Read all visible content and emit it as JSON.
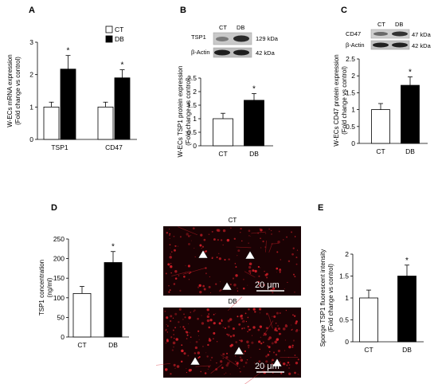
{
  "panels": {
    "A": "A",
    "B": "B",
    "C": "C",
    "D": "D",
    "E": "E"
  },
  "blots": {
    "B": {
      "lanes": [
        "CT",
        "DB"
      ],
      "rows": [
        {
          "protein": "TSP1",
          "size": "129 kDa"
        },
        {
          "protein": "β-Actin",
          "size": "42 kDa"
        }
      ]
    },
    "C": {
      "lanes": [
        "CT",
        "DB"
      ],
      "rows": [
        {
          "protein": "CD47",
          "size": "47 kDa"
        },
        {
          "protein": "β-Actin",
          "size": "42 kDa"
        }
      ]
    }
  },
  "micrographs": {
    "top": {
      "label": "CT",
      "scalebar": "20 μm"
    },
    "bottom": {
      "label": "DB",
      "scalebar": "20 μm"
    }
  },
  "colors": {
    "ct": "#ffffff",
    "db": "#000000",
    "micro_bg": "#1a0204",
    "micro_signal": "#d8202a"
  },
  "chart_data": [
    {
      "panel": "A",
      "type": "bar",
      "categories": [
        "TSP1",
        "CD47"
      ],
      "series": [
        {
          "name": "CT",
          "color": "#ffffff",
          "values": [
            1.0,
            1.0
          ],
          "errors": [
            0.15,
            0.15
          ]
        },
        {
          "name": "DB",
          "color": "#000000",
          "values": [
            2.17,
            1.9
          ],
          "errors": [
            0.42,
            0.25
          ]
        }
      ],
      "significance": [
        {
          "category": "TSP1",
          "series": "DB",
          "mark": "*"
        },
        {
          "category": "CD47",
          "series": "DB",
          "mark": "*"
        }
      ],
      "ylabel": "W-ECs mRNA expression\n(Fold change vs control)",
      "ylim": [
        0,
        3
      ],
      "yticks": [
        "0",
        "1",
        "2",
        "3"
      ],
      "legend": "top-right"
    },
    {
      "panel": "B",
      "type": "bar",
      "categories": [
        "CT",
        "DB"
      ],
      "values": [
        1.0,
        1.68
      ],
      "errors": [
        0.2,
        0.25
      ],
      "significance": [
        {
          "category": "DB",
          "mark": "*"
        }
      ],
      "ylabel": "W-ECs TSP1 protein expression\n(Fold change vs control)",
      "ylim": [
        0,
        2.5
      ],
      "yticks": [
        "0",
        "0.5",
        "1",
        "1.5",
        "2",
        "2.5"
      ]
    },
    {
      "panel": "C",
      "type": "bar",
      "categories": [
        "CT",
        "DB"
      ],
      "values": [
        1.0,
        1.72
      ],
      "errors": [
        0.18,
        0.25
      ],
      "significance": [
        {
          "category": "DB",
          "mark": "*"
        }
      ],
      "ylabel": "W-ECs CD47 protein expression\n(Fold change vs control)",
      "ylim": [
        0,
        2.5
      ],
      "yticks": [
        "0",
        "0.5",
        "1",
        "1.5",
        "2",
        "2.5"
      ]
    },
    {
      "panel": "D",
      "type": "bar",
      "categories": [
        "CT",
        "DB"
      ],
      "values": [
        111,
        190
      ],
      "errors": [
        18,
        28
      ],
      "significance": [
        {
          "category": "DB",
          "mark": "*"
        }
      ],
      "ylabel": "TSP1 concentration\n(ng/ml)",
      "ylim": [
        0,
        250
      ],
      "yticks": [
        "0",
        "50",
        "100",
        "150",
        "200",
        "250"
      ]
    },
    {
      "panel": "E",
      "type": "bar",
      "categories": [
        "CT",
        "DB"
      ],
      "values": [
        1.0,
        1.5
      ],
      "errors": [
        0.18,
        0.25
      ],
      "significance": [
        {
          "category": "DB",
          "mark": "*"
        }
      ],
      "ylabel": "Sponge TSP1 fluorescent intensity\n(Fold change vs control)",
      "ylim": [
        0,
        2
      ],
      "yticks": [
        "0",
        "0.5",
        "1",
        "1.5",
        "2"
      ]
    }
  ]
}
